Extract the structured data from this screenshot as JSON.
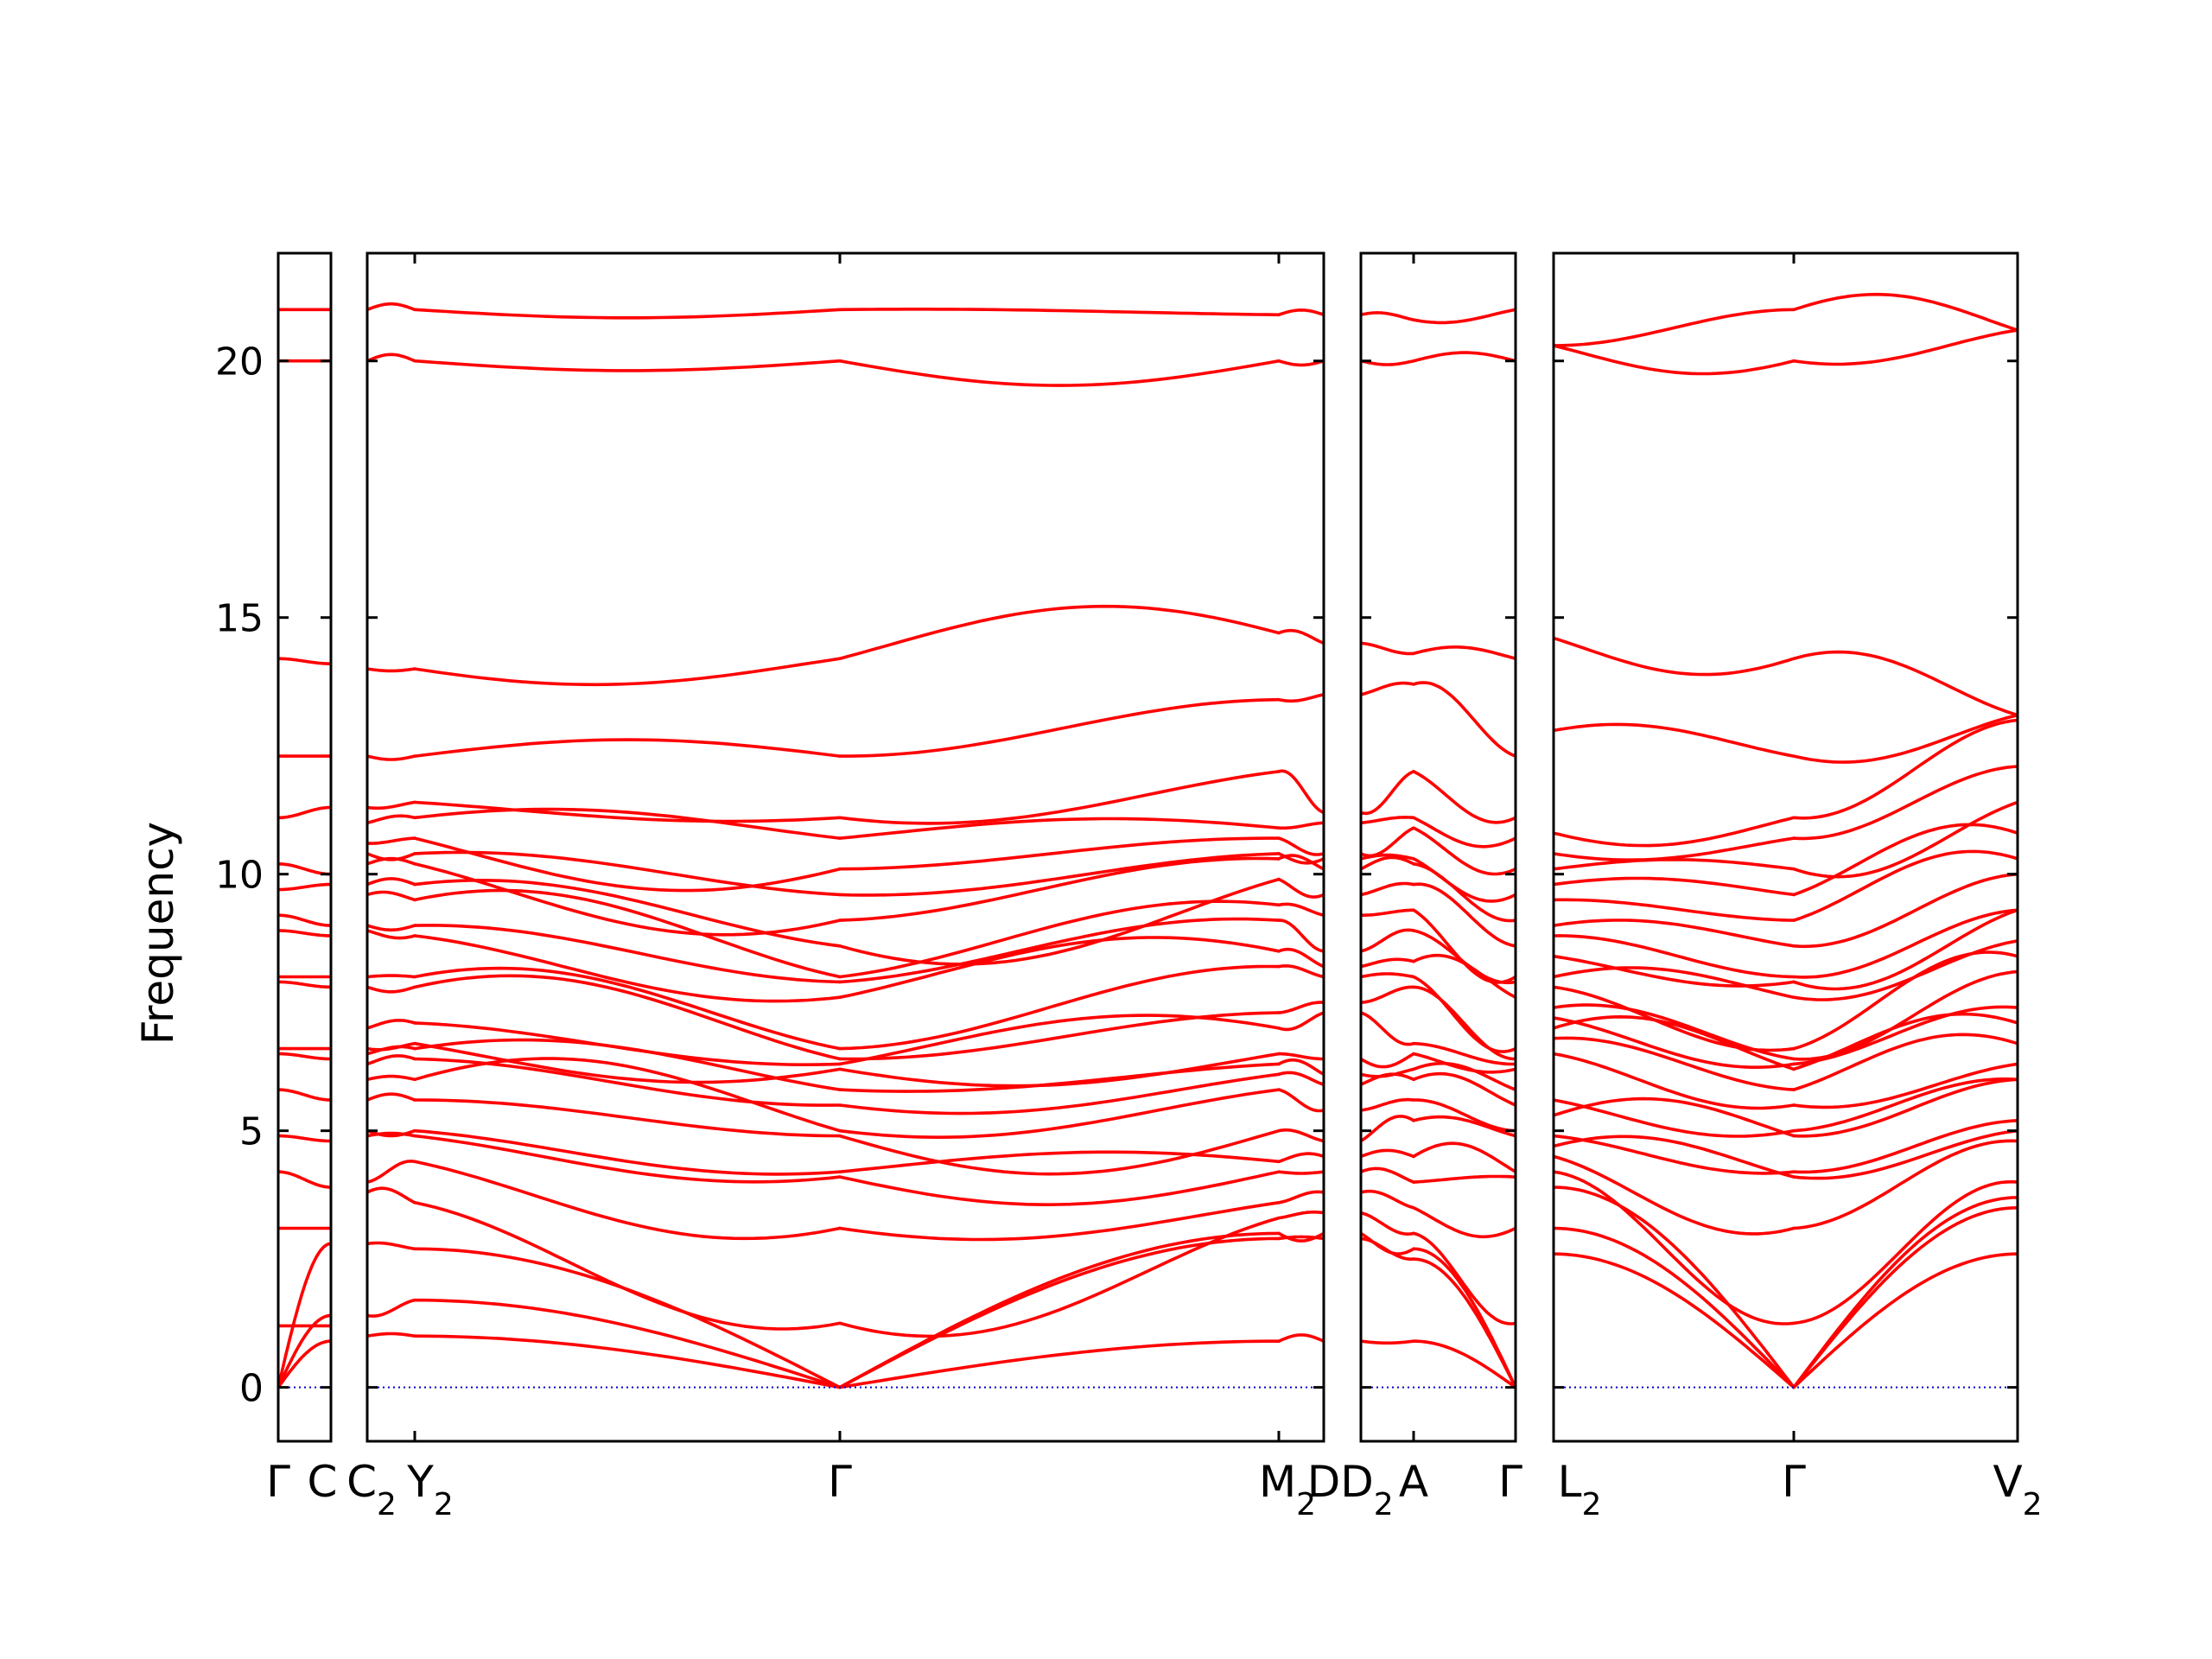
{
  "chart_data": {
    "type": "line",
    "title": "",
    "xlabel": "",
    "ylabel": "Frequency",
    "ylim": [
      -1.05,
      22.1
    ],
    "yticks": [
      0,
      5,
      10,
      15,
      20
    ],
    "grid": false,
    "legend": "none",
    "colors": {
      "bands": "#ff0000",
      "zero_line": "#0000cc"
    },
    "panels": [
      {
        "segments": [
          {
            "ticks": [
              {
                "label": "Γ"
              },
              {
                "label": "C",
                "sub": ""
              }
            ],
            "flat": [
              8.0,
              9.2,
              11.1,
              12.3,
              14.2,
              20.0,
              21.0
            ],
            "acoustic": {
              "start": 0,
              "end": 3.0
            }
          }
        ]
      },
      {
        "segments": [
          {
            "ticks": [
              {
                "label": "C",
                "sub": "2"
              },
              {
                "label": "Y",
                "sub": "2"
              }
            ]
          },
          {
            "ticks": [
              {
                "label": "Y",
                "sub": "2"
              },
              {
                "label": "Γ",
                "sub": ""
              }
            ]
          },
          {
            "ticks": [
              {
                "label": "Γ",
                "sub": ""
              },
              {
                "label": "M",
                "sub": "2"
              }
            ]
          },
          {
            "ticks": [
              {
                "label": "M",
                "sub": "2"
              },
              {
                "label": "D",
                "sub": ""
              }
            ]
          }
        ]
      },
      {
        "segments": [
          {
            "ticks": [
              {
                "label": "D",
                "sub": "2"
              },
              {
                "label": "A",
                "sub": ""
              }
            ]
          },
          {
            "ticks": [
              {
                "label": "A",
                "sub": ""
              },
              {
                "label": "Γ",
                "sub": ""
              }
            ]
          }
        ]
      },
      {
        "segments": [
          {
            "ticks": [
              {
                "label": "L",
                "sub": "2"
              },
              {
                "label": "Γ",
                "sub": ""
              }
            ]
          },
          {
            "ticks": [
              {
                "label": "Γ",
                "sub": ""
              },
              {
                "label": "V",
                "sub": "2"
              }
            ]
          }
        ]
      }
    ],
    "xtick_labels": [
      {
        "label": "Γ",
        "sub": ""
      },
      {
        "label": "C",
        "sub": ""
      },
      {
        "label": "C",
        "sub": "2"
      },
      {
        "label": "Y",
        "sub": "2"
      },
      {
        "label": "Γ",
        "sub": ""
      },
      {
        "label": "M",
        "sub": "2"
      },
      {
        "label": "D",
        "sub": ""
      },
      {
        "label": "D",
        "sub": "2"
      },
      {
        "label": "A",
        "sub": ""
      },
      {
        "label": "Γ",
        "sub": ""
      },
      {
        "label": "L",
        "sub": "2"
      },
      {
        "label": "Γ",
        "sub": ""
      },
      {
        "label": "V",
        "sub": "2"
      }
    ],
    "bands": {
      "gamma_values": [
        0,
        0,
        0,
        1.25,
        3.1,
        4.1,
        4.9,
        5.8,
        6.2,
        6.4,
        6.6,
        7.6,
        8.0,
        8.6,
        9.1,
        9.6,
        10.1,
        10.7,
        11.1,
        12.3,
        14.2,
        20.0,
        21.0
      ],
      "notes_values_only": true
    }
  }
}
